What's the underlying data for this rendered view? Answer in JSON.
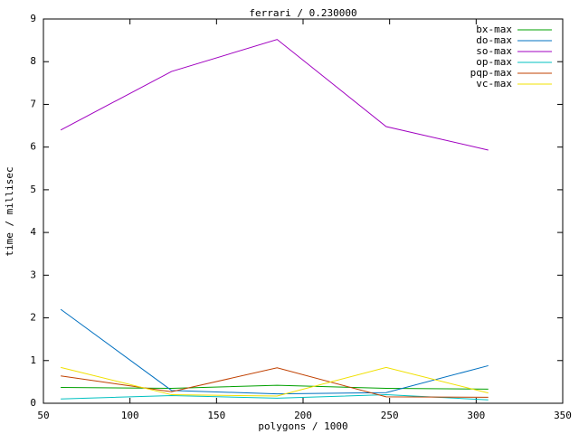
{
  "chart_data": {
    "type": "line",
    "title": "ferrari / 0.230000",
    "x_label": "polygons / 1000",
    "y_label": "time / millisec",
    "x": [
      60,
      124,
      185,
      248,
      307
    ],
    "series": [
      {
        "name": "bx-max",
        "color": "#00a000",
        "values": [
          0.37,
          0.35,
          0.42,
          0.35,
          0.33
        ]
      },
      {
        "name": "do-max",
        "color": "#0070c0",
        "values": [
          2.2,
          0.3,
          0.22,
          0.25,
          0.88
        ]
      },
      {
        "name": "so-max",
        "color": "#a000c0",
        "values": [
          6.4,
          7.77,
          8.52,
          6.48,
          5.93
        ]
      },
      {
        "name": "op-max",
        "color": "#00c0c0",
        "values": [
          0.1,
          0.18,
          0.12,
          0.2,
          0.08
        ]
      },
      {
        "name": "pqp-max",
        "color": "#c04000",
        "values": [
          0.64,
          0.27,
          0.83,
          0.15,
          0.14
        ]
      },
      {
        "name": "vc-max",
        "color": "#f0e000",
        "values": [
          0.84,
          0.2,
          0.17,
          0.84,
          0.24
        ]
      }
    ],
    "xlim": [
      50,
      350
    ],
    "xticks": [
      50,
      100,
      150,
      200,
      250,
      300,
      350
    ],
    "ylim": [
      0,
      9
    ],
    "yticks": [
      0,
      1,
      2,
      3,
      4,
      5,
      6,
      7,
      8,
      9
    ],
    "legend": "top-right",
    "grid": false
  }
}
